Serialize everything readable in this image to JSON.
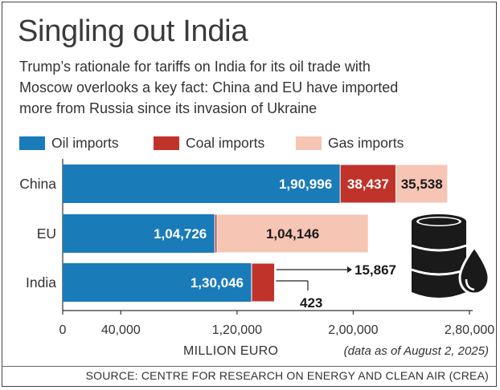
{
  "chart_data": {
    "type": "bar",
    "orientation": "horizontal",
    "stacked": true,
    "title": "Singling out India",
    "subtitle_lines": [
      "Trump’s rationale for tariffs on India for its oil trade with",
      "Moscow overlooks a key fact: China and EU have imported",
      "more from Russia since its invasion of Ukraine"
    ],
    "categories": [
      "China",
      "EU",
      "India"
    ],
    "series": [
      {
        "name": "Oil imports",
        "color": "#1a7bb9",
        "values": [
          190996,
          104726,
          130046
        ],
        "labels": [
          "1,90,996",
          "1,04,726",
          "1,30,046"
        ]
      },
      {
        "name": "Coal imports",
        "color": "#c0332b",
        "values": [
          38437,
          1500,
          15867
        ],
        "labels": [
          "38,437",
          "",
          "15,867"
        ]
      },
      {
        "name": "Gas imports",
        "color": "#f6c5b4",
        "values": [
          35538,
          104146,
          423
        ],
        "labels": [
          "35,538",
          "1,04,146",
          "423"
        ]
      }
    ],
    "xlabel": "MILLION EURO",
    "xlim": [
      0,
      280000
    ],
    "xticks": [
      0,
      40000,
      120000,
      200000,
      280000
    ],
    "xtick_labels": [
      "0",
      "40,000",
      "1,20,000",
      "2,00,000",
      "2,80,000"
    ],
    "note": "(data as of August 2, 2025)",
    "source": "SOURCE: CENTRE FOR RESEARCH ON ENERGY AND CLEAN AIR (CREA)"
  },
  "colors": {
    "text": "#333333",
    "oil": "#1a7bb9",
    "coal": "#c0332b",
    "gas": "#f6c5b4",
    "barrel": "#1a1a1a"
  },
  "icons": {
    "barrel": "oil-barrel-icon"
  }
}
